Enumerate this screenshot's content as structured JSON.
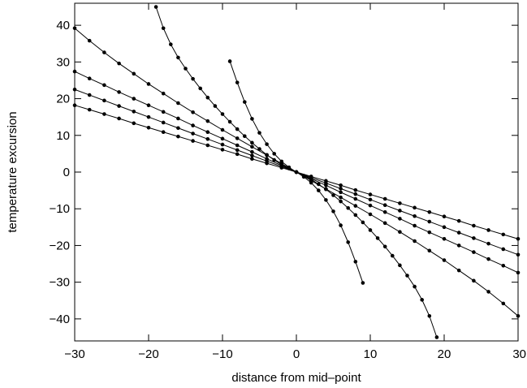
{
  "chart_data": {
    "type": "line",
    "title": "",
    "xlabel": "distance from mid–point",
    "ylabel": "temperature excursion",
    "xlim": [
      -30,
      30
    ],
    "ylim": [
      -46,
      46
    ],
    "xticks": [
      -30,
      -20,
      -10,
      0,
      10,
      20,
      30
    ],
    "yticks": [
      -40,
      -30,
      -20,
      -10,
      0,
      10,
      20,
      30,
      40
    ],
    "grid": false,
    "legend": "none",
    "colors": {
      "line": "#000000",
      "marker": "#000000",
      "axes": "#000000",
      "background": "#ffffff"
    },
    "series": [
      {
        "x": [
          -9,
          -8,
          -7,
          -6,
          -5,
          -4,
          -3,
          -2,
          -1,
          0,
          1,
          2,
          3,
          4,
          5,
          6,
          7,
          8,
          9
        ],
        "y": [
          30.2,
          24.4,
          19.1,
          14.5,
          10.7,
          7.6,
          5.0,
          2.9,
          1.3,
          0,
          -1.3,
          -2.9,
          -5.0,
          -7.6,
          -10.7,
          -14.5,
          -19.1,
          -24.4,
          -30.2
        ]
      },
      {
        "x": [
          -19,
          -18,
          -17,
          -16,
          -15,
          -14,
          -13,
          -12,
          -11,
          -10,
          -9,
          -8,
          -7,
          -6,
          -5,
          -4,
          -3,
          -2,
          -1,
          0,
          1,
          2,
          3,
          4,
          5,
          6,
          7,
          8,
          9,
          10,
          11,
          12,
          13,
          14,
          15,
          16,
          17,
          18,
          19
        ],
        "y": [
          45.0,
          39.2,
          34.8,
          31.2,
          28.2,
          25.4,
          22.8,
          20.3,
          18.0,
          15.8,
          13.7,
          11.7,
          9.8,
          8.0,
          6.3,
          4.7,
          3.3,
          2.0,
          1.0,
          0,
          -1.0,
          -2.0,
          -3.3,
          -4.7,
          -6.3,
          -8.0,
          -9.8,
          -11.7,
          -13.7,
          -15.8,
          -18.0,
          -20.3,
          -22.8,
          -25.4,
          -28.2,
          -31.2,
          -34.8,
          -39.2,
          -45.0
        ]
      },
      {
        "x": [
          -30,
          -28,
          -26,
          -24,
          -22,
          -20,
          -18,
          -16,
          -14,
          -12,
          -10,
          -8,
          -6,
          -4,
          -2,
          0,
          2,
          4,
          6,
          8,
          10,
          12,
          14,
          16,
          18,
          20,
          22,
          24,
          26,
          28,
          30
        ],
        "y": [
          39.2,
          35.8,
          32.6,
          29.6,
          26.8,
          24.0,
          21.4,
          18.8,
          16.3,
          13.9,
          11.5,
          9.2,
          6.9,
          4.6,
          2.3,
          0,
          -2.3,
          -4.6,
          -6.9,
          -9.2,
          -11.5,
          -13.9,
          -16.3,
          -18.8,
          -21.4,
          -24.0,
          -26.8,
          -29.6,
          -32.6,
          -35.8,
          -39.2
        ]
      },
      {
        "x": [
          -30,
          -28,
          -26,
          -24,
          -22,
          -20,
          -18,
          -16,
          -14,
          -12,
          -10,
          -8,
          -6,
          -4,
          -2,
          0,
          2,
          4,
          6,
          8,
          10,
          12,
          14,
          16,
          18,
          20,
          22,
          24,
          26,
          28,
          30
        ],
        "y": [
          27.4,
          25.5,
          23.7,
          21.8,
          20.0,
          18.2,
          16.4,
          14.6,
          12.7,
          10.9,
          9.1,
          7.3,
          5.5,
          3.6,
          1.8,
          0,
          -1.8,
          -3.6,
          -5.5,
          -7.3,
          -9.1,
          -10.9,
          -12.7,
          -14.6,
          -16.4,
          -18.2,
          -20.0,
          -21.8,
          -23.7,
          -25.5,
          -27.4
        ]
      },
      {
        "x": [
          -30,
          -28,
          -26,
          -24,
          -22,
          -20,
          -18,
          -16,
          -14,
          -12,
          -10,
          -8,
          -6,
          -4,
          -2,
          0,
          2,
          4,
          6,
          8,
          10,
          12,
          14,
          16,
          18,
          20,
          22,
          24,
          26,
          28,
          30
        ],
        "y": [
          22.5,
          21.0,
          19.5,
          18.0,
          16.5,
          15.0,
          13.5,
          12.0,
          10.5,
          9.0,
          7.5,
          6.0,
          4.5,
          3.0,
          1.5,
          0,
          -1.5,
          -3.0,
          -4.5,
          -6.0,
          -7.5,
          -9.0,
          -10.5,
          -12.0,
          -13.5,
          -15.0,
          -16.5,
          -18.0,
          -19.5,
          -21.0,
          -22.5
        ]
      },
      {
        "x": [
          -30,
          -28,
          -26,
          -24,
          -22,
          -20,
          -18,
          -16,
          -14,
          -12,
          -10,
          -8,
          -6,
          -4,
          -2,
          0,
          2,
          4,
          6,
          8,
          10,
          12,
          14,
          16,
          18,
          20,
          22,
          24,
          26,
          28,
          30
        ],
        "y": [
          18.2,
          17.0,
          15.8,
          14.6,
          13.3,
          12.1,
          10.9,
          9.7,
          8.5,
          7.3,
          6.1,
          4.9,
          3.6,
          2.4,
          1.2,
          0,
          -1.2,
          -2.4,
          -3.6,
          -4.9,
          -6.1,
          -7.3,
          -8.5,
          -9.7,
          -10.9,
          -12.1,
          -13.3,
          -14.6,
          -15.8,
          -17.0,
          -18.2
        ]
      }
    ]
  }
}
